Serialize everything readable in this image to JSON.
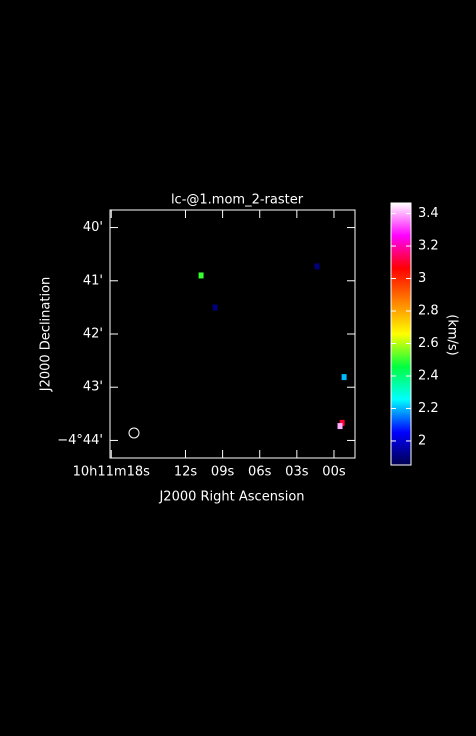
{
  "chart_data": {
    "type": "image",
    "title": "lc-@1.mom_2-raster",
    "xlabel": "J2000 Right Ascension",
    "ylabel": "J2000 Declination",
    "colorbar_label": "(km/s)",
    "x": [
      10.74,
      9.61,
      1.37,
      -0.82,
      -0.66,
      -0.49
    ],
    "y": [
      -280.9,
      -281.5,
      -280.73,
      -282.81,
      -283.67,
      -283.73
    ],
    "values": [
      2.5,
      1.9,
      1.9,
      2.2,
      3.1,
      3.4
    ],
    "xlim": [
      18.1,
      -1.7
    ],
    "ylim": [
      -284.33,
      -279.67
    ],
    "xticks": [
      {
        "value": 18,
        "label": "10h11m18s"
      },
      {
        "value": 12,
        "label": "12s"
      },
      {
        "value": 9,
        "label": "09s"
      },
      {
        "value": 6,
        "label": "06s"
      },
      {
        "value": 3,
        "label": "03s"
      },
      {
        "value": 0,
        "label": "00s"
      }
    ],
    "yticks": [
      {
        "value": -280,
        "label": "40'"
      },
      {
        "value": -281,
        "label": "41'"
      },
      {
        "value": -282,
        "label": "42'"
      },
      {
        "value": -283,
        "label": "43'"
      },
      {
        "value": -284,
        "label": "−4°44'"
      }
    ],
    "clim": [
      1.852,
      3.465
    ],
    "cticks": [
      2,
      2.2,
      2.4,
      2.6,
      2.8,
      3,
      3.2,
      3.4
    ],
    "colormap": [
      "#000050",
      "#0000ff",
      "#00ffff",
      "#00ff40",
      "#ffff00",
      "#ff8000",
      "#ff0000",
      "#ff00ff",
      "#ffffff"
    ]
  }
}
